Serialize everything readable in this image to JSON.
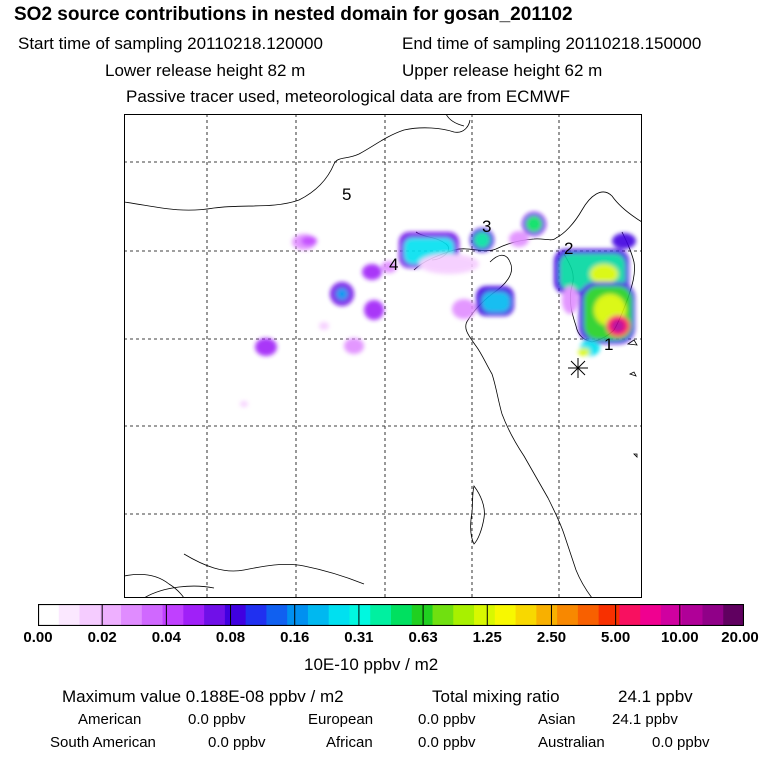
{
  "header": {
    "title": "SO2 source contributions in nested domain for gosan_201102",
    "start_label": "Start time of sampling 20110218.120000",
    "end_label": "End time of sampling 20110218.150000",
    "lower_label": "Lower release height   82 m",
    "upper_label": "Upper release height   62 m",
    "note": "Passive tracer used, meteorological data are from ECMWF"
  },
  "map": {
    "region_labels": [
      "5",
      "3",
      "2",
      "4",
      "1"
    ]
  },
  "colorbar": {
    "ticks": [
      "0.00",
      "0.02",
      "0.04",
      "0.08",
      "0.16",
      "0.31",
      "0.63",
      "1.25",
      "2.50",
      "5.00",
      "10.00",
      "20.00"
    ],
    "colors": [
      "#ffffff",
      "#fbe8ff",
      "#f5ccff",
      "#eeb0ff",
      "#e08cff",
      "#d068ff",
      "#c040ff",
      "#a020f8",
      "#7010e8",
      "#4000e0",
      "#2030f0",
      "#1060f0",
      "#0090f0",
      "#00b8f0",
      "#00e0f0",
      "#00f8e0",
      "#00f0a0",
      "#00e060",
      "#20d020",
      "#70e010",
      "#a8f000",
      "#d8f800",
      "#f8f800",
      "#f8d800",
      "#f8b000",
      "#f88800",
      "#f86000",
      "#f83000",
      "#f81060",
      "#f00090",
      "#d000a0",
      "#b00098",
      "#900088",
      "#600060"
    ],
    "unit": "10E-10 ppbv / m2"
  },
  "stats": {
    "max_label": "Maximum value  0.188E-08 ppbv / m2",
    "total_label": "Total mixing ratio",
    "total_value": "24.1 ppbv",
    "american_label": "American",
    "american_value": "0.0 ppbv",
    "european_label": "European",
    "european_value": "0.0 ppbv",
    "asian_label": "Asian",
    "asian_value": "24.1 ppbv",
    "south_american_label": "South American",
    "south_american_value": "0.0 ppbv",
    "african_label": "African",
    "african_value": "0.0 ppbv",
    "australian_label": "Australian",
    "australian_value": "0.0 ppbv"
  }
}
